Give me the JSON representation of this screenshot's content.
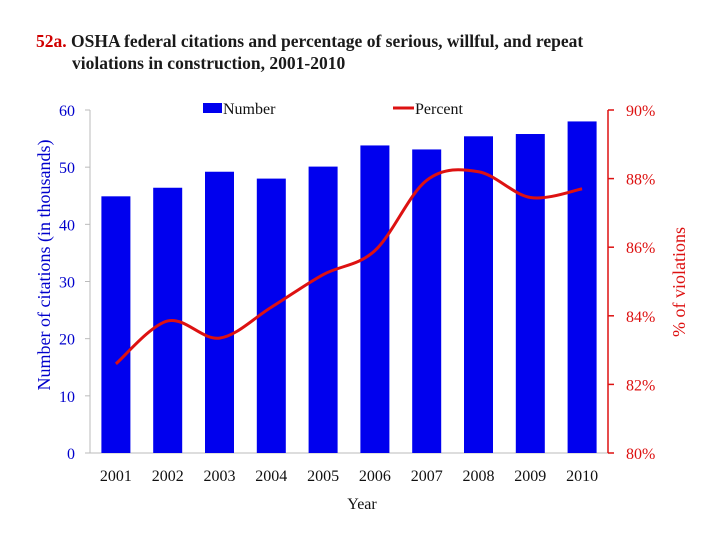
{
  "title": {
    "number": "52a.",
    "line1": "OSHA federal citations and percentage of serious, willful, and repeat",
    "line2": "violations in construction, 2001-2010"
  },
  "colors": {
    "bars": "#0000ee",
    "line": "#dd1111",
    "left_axis": "#0000cc",
    "right_axis": "#dd1111"
  },
  "chart_data": {
    "type": "bar+line",
    "categories": [
      "2001",
      "2002",
      "2003",
      "2004",
      "2005",
      "2006",
      "2007",
      "2008",
      "2009",
      "2010"
    ],
    "series": [
      {
        "name": "Number",
        "type": "bar",
        "axis": "left",
        "values": [
          44.9,
          46.4,
          49.2,
          48.0,
          50.1,
          53.8,
          53.1,
          55.4,
          55.8,
          58.0
        ]
      },
      {
        "name": "Percent",
        "type": "line",
        "axis": "right",
        "smooth": true,
        "values": [
          82.6,
          83.85,
          83.35,
          84.25,
          85.2,
          85.9,
          87.95,
          88.2,
          87.45,
          87.7
        ]
      }
    ],
    "xlabel": "Year",
    "ylabel": "Number of citations (in thousands)",
    "y2label": "% of violations",
    "ylim": [
      0,
      60
    ],
    "y2lim": [
      80,
      90
    ],
    "yticks": [
      "0",
      "10",
      "20",
      "30",
      "40",
      "50",
      "60"
    ],
    "y2ticks": [
      "80%",
      "82%",
      "84%",
      "86%",
      "88%",
      "90%"
    ],
    "grid": false,
    "legend": "top"
  }
}
